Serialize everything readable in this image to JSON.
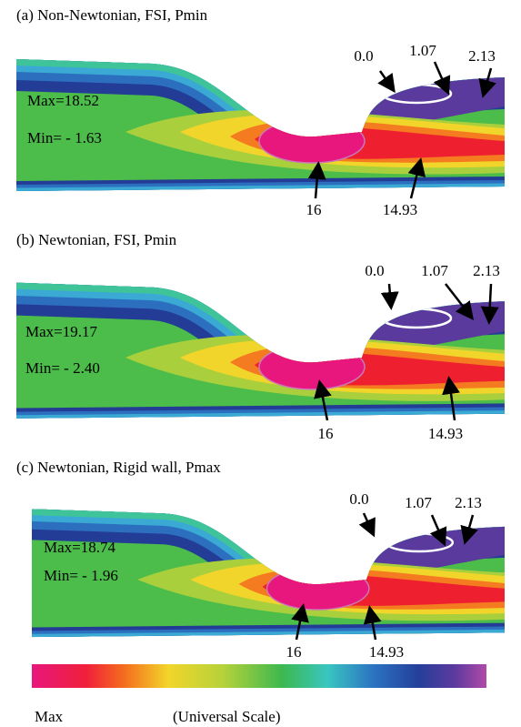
{
  "panels": [
    {
      "title": "(a) Non-Newtonian, FSI, Pmin",
      "max": "Max=18.52",
      "min": "Min= - 1.63",
      "labels": [
        "0.0",
        "1.07",
        "2.13",
        "16",
        "14.93"
      ]
    },
    {
      "title": "(b) Newtonian, FSI, Pmin",
      "max": "Max=19.17",
      "min": "Min= - 2.40",
      "labels": [
        "0.0",
        "1.07",
        "2.13",
        "16",
        "14.93"
      ]
    },
    {
      "title": "(c) Newtonian, Rigid wall, Pmax",
      "max": "Max=18.74",
      "min": "Min= - 1.96",
      "labels": [
        "0.0",
        "1.07",
        "2.13",
        "16",
        "14.93"
      ]
    }
  ],
  "colorbar": {
    "left_label": "Max",
    "title": "(Universal Scale)"
  }
}
